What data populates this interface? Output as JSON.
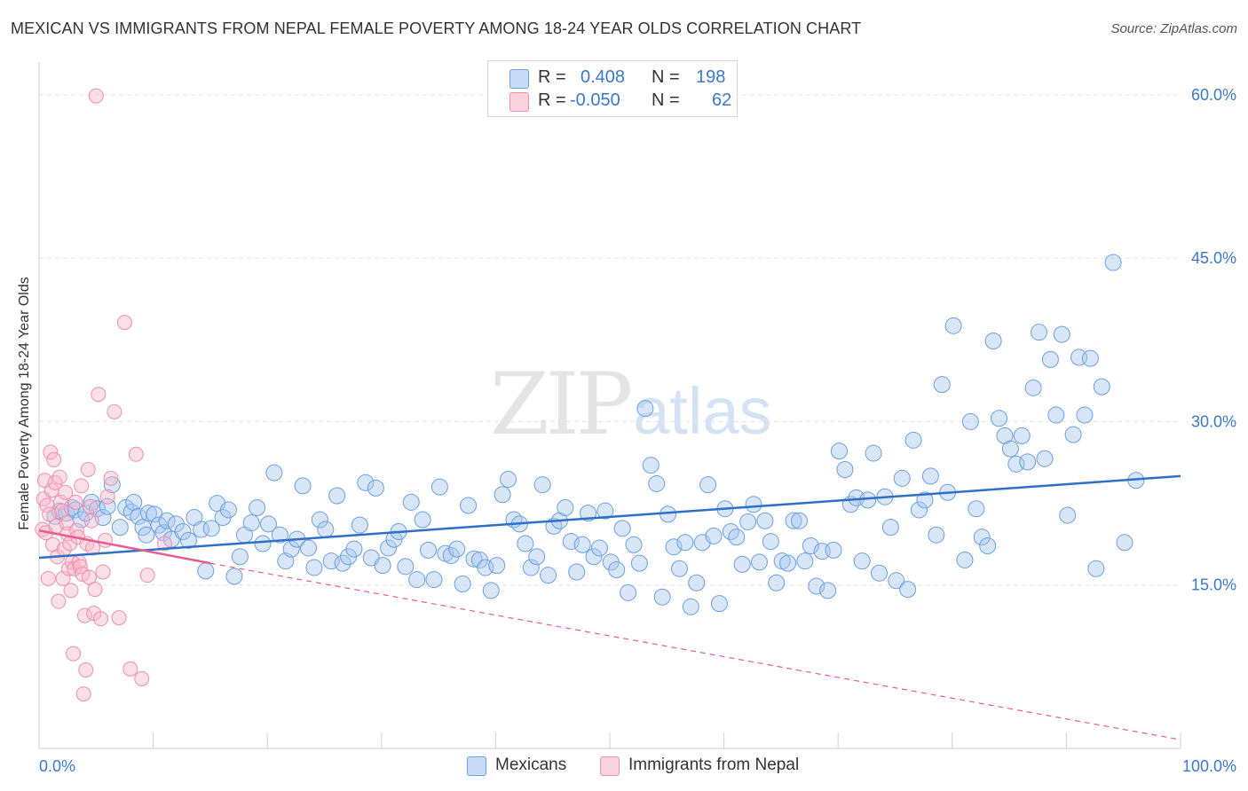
{
  "title": "MEXICAN VS IMMIGRANTS FROM NEPAL FEMALE POVERTY AMONG 18-24 YEAR OLDS CORRELATION CHART",
  "source": "Source: ZipAtlas.com",
  "watermark": {
    "zip": "ZIP",
    "atlas": "atlas"
  },
  "legend": {
    "rows": [
      {
        "r_label": "R =",
        "r_value": "0.408",
        "n_label": "N =",
        "n_value": "198",
        "color": "#a9c7ef"
      },
      {
        "r_label": "R =",
        "r_value": "-0.050",
        "n_label": "N =",
        "n_value": "62",
        "color": "#f6b8cb"
      }
    ]
  },
  "bottom_legend": [
    {
      "label": "Mexicans",
      "color": "#a9c7ef"
    },
    {
      "label": "Immigrants from Nepal",
      "color": "#f6b8cb"
    }
  ],
  "colors": {
    "blue_fill": "#a9c7ef",
    "blue_stroke": "#6a9fe0",
    "blue_line": "#2e6fc7",
    "pink_fill": "#f6b8cb",
    "pink_stroke": "#ee8fac",
    "pink_line": "#e45d8f",
    "grid": "#e3e3e3",
    "axis_text": "#3b78c9"
  },
  "chart_data": {
    "type": "scatter",
    "title": "MEXICAN VS IMMIGRANTS FROM NEPAL FEMALE POVERTY AMONG 18-24 YEAR OLDS CORRELATION CHART",
    "xlabel": "",
    "ylabel": "Female Poverty Among 18-24 Year Olds",
    "xlim": [
      0,
      100
    ],
    "ylim": [
      0,
      63
    ],
    "x_tick_labels": [
      "0.0%",
      "100.0%"
    ],
    "y_ticks": [
      15,
      30,
      45,
      60
    ],
    "y_tick_labels": [
      "15.0%",
      "30.0%",
      "45.0%",
      "60.0%"
    ],
    "grid": true,
    "legend_position": "top-center",
    "series": [
      {
        "name": "Mexicans",
        "color": "#a9c7ef",
        "trend": {
          "x": [
            0,
            100
          ],
          "y": [
            17.5,
            25.0
          ],
          "style": "solid"
        },
        "points": [
          [
            1.4,
            21.3
          ],
          [
            1.8,
            21.8
          ],
          [
            2.4,
            21.6
          ],
          [
            2.9,
            22.1
          ],
          [
            3.2,
            21.9
          ],
          [
            3.7,
            21.0
          ],
          [
            4.1,
            21.6
          ],
          [
            4.6,
            22.6
          ],
          [
            5.1,
            22.0
          ],
          [
            5.6,
            21.2
          ],
          [
            6.0,
            22.2
          ],
          [
            6.4,
            24.2
          ],
          [
            7.1,
            20.3
          ],
          [
            7.6,
            22.1
          ],
          [
            8.1,
            21.7
          ],
          [
            8.3,
            22.6
          ],
          [
            8.7,
            21.3
          ],
          [
            9.1,
            20.3
          ],
          [
            9.4,
            19.6
          ],
          [
            9.6,
            21.6
          ],
          [
            10.1,
            21.5
          ],
          [
            10.5,
            20.5
          ],
          [
            10.9,
            19.8
          ],
          [
            11.2,
            20.9
          ],
          [
            11.6,
            19.2
          ],
          [
            12.0,
            20.6
          ],
          [
            12.6,
            19.9
          ],
          [
            13.1,
            19.1
          ],
          [
            13.6,
            21.2
          ],
          [
            14.2,
            20.1
          ],
          [
            14.6,
            16.3
          ],
          [
            15.1,
            20.2
          ],
          [
            15.6,
            22.5
          ],
          [
            16.1,
            21.2
          ],
          [
            16.6,
            21.9
          ],
          [
            17.1,
            15.8
          ],
          [
            17.6,
            17.6
          ],
          [
            18.0,
            19.6
          ],
          [
            18.6,
            20.7
          ],
          [
            19.1,
            22.1
          ],
          [
            19.6,
            18.8
          ],
          [
            20.1,
            20.6
          ],
          [
            20.6,
            25.3
          ],
          [
            21.1,
            19.6
          ],
          [
            21.6,
            17.2
          ],
          [
            22.1,
            18.3
          ],
          [
            22.6,
            19.2
          ],
          [
            23.1,
            24.1
          ],
          [
            23.6,
            18.4
          ],
          [
            24.1,
            16.6
          ],
          [
            24.6,
            21.0
          ],
          [
            25.1,
            20.1
          ],
          [
            25.6,
            17.2
          ],
          [
            26.1,
            23.2
          ],
          [
            26.6,
            17.0
          ],
          [
            27.1,
            17.6
          ],
          [
            27.6,
            18.3
          ],
          [
            28.1,
            20.5
          ],
          [
            28.6,
            24.4
          ],
          [
            29.1,
            17.5
          ],
          [
            29.5,
            23.9
          ],
          [
            30.1,
            16.8
          ],
          [
            30.6,
            18.4
          ],
          [
            31.1,
            19.2
          ],
          [
            31.5,
            19.9
          ],
          [
            32.1,
            16.7
          ],
          [
            32.6,
            22.6
          ],
          [
            33.1,
            15.5
          ],
          [
            33.6,
            21.0
          ],
          [
            34.1,
            18.2
          ],
          [
            34.6,
            15.5
          ],
          [
            35.1,
            24.0
          ],
          [
            35.6,
            17.9
          ],
          [
            36.1,
            17.7
          ],
          [
            36.6,
            18.3
          ],
          [
            37.1,
            15.1
          ],
          [
            37.6,
            22.3
          ],
          [
            38.1,
            17.4
          ],
          [
            38.6,
            17.3
          ],
          [
            39.1,
            16.6
          ],
          [
            39.6,
            14.5
          ],
          [
            40.1,
            16.8
          ],
          [
            40.6,
            23.3
          ],
          [
            41.1,
            24.7
          ],
          [
            41.6,
            21.0
          ],
          [
            42.1,
            20.6
          ],
          [
            42.6,
            18.8
          ],
          [
            43.1,
            16.6
          ],
          [
            43.6,
            17.6
          ],
          [
            44.1,
            24.2
          ],
          [
            44.6,
            15.9
          ],
          [
            45.1,
            20.4
          ],
          [
            45.6,
            20.9
          ],
          [
            46.1,
            22.1
          ],
          [
            46.6,
            19.0
          ],
          [
            47.1,
            16.2
          ],
          [
            47.6,
            18.7
          ],
          [
            48.1,
            21.6
          ],
          [
            48.6,
            17.6
          ],
          [
            49.1,
            18.4
          ],
          [
            49.6,
            21.8
          ],
          [
            50.1,
            17.1
          ],
          [
            50.6,
            16.4
          ],
          [
            51.1,
            20.2
          ],
          [
            51.6,
            14.3
          ],
          [
            52.1,
            18.7
          ],
          [
            52.6,
            17.0
          ],
          [
            53.1,
            31.2
          ],
          [
            53.6,
            26.0
          ],
          [
            54.1,
            24.3
          ],
          [
            54.6,
            13.9
          ],
          [
            55.1,
            21.5
          ],
          [
            55.6,
            18.5
          ],
          [
            56.1,
            16.5
          ],
          [
            56.6,
            18.9
          ],
          [
            57.1,
            13.0
          ],
          [
            57.6,
            15.2
          ],
          [
            58.1,
            18.9
          ],
          [
            58.6,
            24.2
          ],
          [
            59.1,
            19.5
          ],
          [
            59.6,
            13.3
          ],
          [
            60.1,
            22.0
          ],
          [
            60.6,
            19.9
          ],
          [
            61.1,
            19.4
          ],
          [
            61.6,
            16.9
          ],
          [
            62.1,
            20.8
          ],
          [
            62.6,
            22.4
          ],
          [
            63.1,
            17.1
          ],
          [
            63.6,
            20.9
          ],
          [
            64.1,
            19.0
          ],
          [
            64.6,
            15.2
          ],
          [
            65.1,
            17.2
          ],
          [
            65.6,
            17.0
          ],
          [
            66.1,
            20.9
          ],
          [
            66.6,
            20.9
          ],
          [
            67.1,
            17.2
          ],
          [
            67.6,
            18.6
          ],
          [
            68.1,
            14.9
          ],
          [
            68.6,
            18.1
          ],
          [
            69.1,
            14.5
          ],
          [
            69.6,
            18.2
          ],
          [
            70.1,
            27.3
          ],
          [
            70.6,
            25.6
          ],
          [
            71.1,
            22.4
          ],
          [
            71.6,
            23.0
          ],
          [
            72.1,
            17.2
          ],
          [
            72.6,
            22.8
          ],
          [
            73.1,
            27.1
          ],
          [
            73.6,
            16.1
          ],
          [
            74.1,
            23.1
          ],
          [
            74.6,
            20.3
          ],
          [
            75.1,
            15.4
          ],
          [
            75.6,
            24.8
          ],
          [
            76.1,
            14.6
          ],
          [
            76.6,
            28.3
          ],
          [
            77.1,
            21.9
          ],
          [
            77.6,
            22.8
          ],
          [
            78.1,
            25.0
          ],
          [
            78.6,
            19.6
          ],
          [
            79.1,
            33.4
          ],
          [
            79.6,
            23.5
          ],
          [
            80.1,
            38.8
          ],
          [
            81.1,
            17.3
          ],
          [
            81.6,
            30.0
          ],
          [
            82.1,
            22.0
          ],
          [
            82.6,
            19.4
          ],
          [
            83.1,
            18.6
          ],
          [
            83.6,
            37.4
          ],
          [
            84.1,
            30.3
          ],
          [
            84.6,
            28.7
          ],
          [
            85.1,
            27.5
          ],
          [
            85.6,
            26.1
          ],
          [
            86.1,
            28.7
          ],
          [
            86.6,
            26.3
          ],
          [
            87.1,
            33.1
          ],
          [
            87.6,
            38.2
          ],
          [
            88.1,
            26.6
          ],
          [
            88.6,
            35.7
          ],
          [
            89.1,
            30.6
          ],
          [
            89.6,
            38.0
          ],
          [
            90.1,
            21.4
          ],
          [
            90.6,
            28.8
          ],
          [
            91.1,
            35.9
          ],
          [
            91.6,
            30.6
          ],
          [
            92.1,
            35.8
          ],
          [
            92.6,
            16.5
          ],
          [
            93.1,
            33.2
          ],
          [
            94.1,
            44.6
          ],
          [
            95.1,
            18.9
          ],
          [
            96.1,
            24.6
          ]
        ]
      },
      {
        "name": "Immigrants from Nepal",
        "color": "#f6b8cb",
        "trend": {
          "x": [
            0,
            15
          ],
          "y": [
            20.0,
            17.0
          ],
          "style": "solid",
          "extended_to": [
            100,
            0.8
          ],
          "extended_style": "dashed"
        },
        "points": [
          [
            0.3,
            20.1
          ],
          [
            0.4,
            22.9
          ],
          [
            0.5,
            24.6
          ],
          [
            0.6,
            19.8
          ],
          [
            0.7,
            22.3
          ],
          [
            0.8,
            15.6
          ],
          [
            0.9,
            21.5
          ],
          [
            1.0,
            27.2
          ],
          [
            1.1,
            23.7
          ],
          [
            1.2,
            18.7
          ],
          [
            1.3,
            26.5
          ],
          [
            1.4,
            24.4
          ],
          [
            1.5,
            20.4
          ],
          [
            1.6,
            17.6
          ],
          [
            1.7,
            13.5
          ],
          [
            1.8,
            24.9
          ],
          [
            1.9,
            22.6
          ],
          [
            2.0,
            21.8
          ],
          [
            2.1,
            15.6
          ],
          [
            2.2,
            18.3
          ],
          [
            2.3,
            23.5
          ],
          [
            2.4,
            20.7
          ],
          [
            2.5,
            19.7
          ],
          [
            2.6,
            16.5
          ],
          [
            2.7,
            18.8
          ],
          [
            2.8,
            14.5
          ],
          [
            2.9,
            17.1
          ],
          [
            3.0,
            8.7
          ],
          [
            3.1,
            16.5
          ],
          [
            3.2,
            22.6
          ],
          [
            3.3,
            20.0
          ],
          [
            3.4,
            19.4
          ],
          [
            3.5,
            17.1
          ],
          [
            3.6,
            16.7
          ],
          [
            3.7,
            24.1
          ],
          [
            3.8,
            16.0
          ],
          [
            3.9,
            5.0
          ],
          [
            4.0,
            12.2
          ],
          [
            4.1,
            7.2
          ],
          [
            4.2,
            18.8
          ],
          [
            4.3,
            25.6
          ],
          [
            4.4,
            15.7
          ],
          [
            4.5,
            22.2
          ],
          [
            4.6,
            20.9
          ],
          [
            4.7,
            18.4
          ],
          [
            4.8,
            12.4
          ],
          [
            4.9,
            14.6
          ],
          [
            5.0,
            59.9
          ],
          [
            5.2,
            32.5
          ],
          [
            5.4,
            11.9
          ],
          [
            5.6,
            16.2
          ],
          [
            5.8,
            19.1
          ],
          [
            6.0,
            23.1
          ],
          [
            6.3,
            24.8
          ],
          [
            6.6,
            30.9
          ],
          [
            7.0,
            12.0
          ],
          [
            7.5,
            39.1
          ],
          [
            8.0,
            7.3
          ],
          [
            8.5,
            27.0
          ],
          [
            9.0,
            6.4
          ],
          [
            9.5,
            15.9
          ],
          [
            11.0,
            18.8
          ]
        ]
      }
    ]
  }
}
